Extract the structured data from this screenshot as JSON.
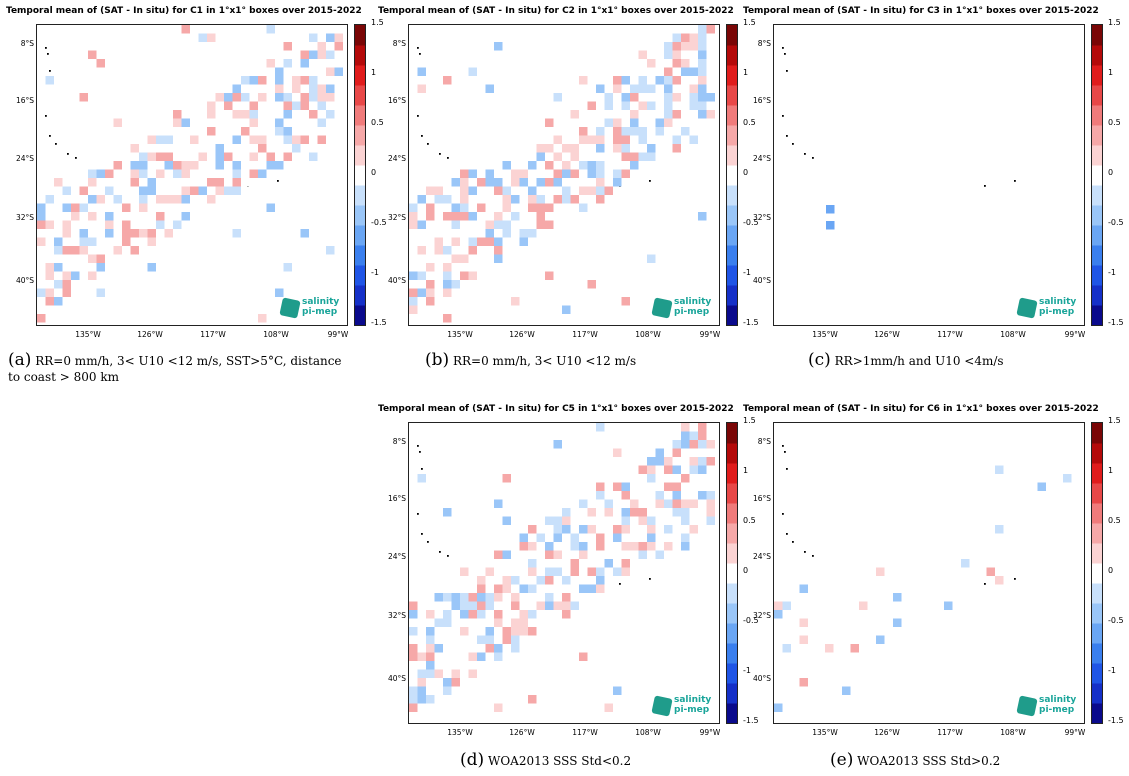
{
  "colors": {
    "land": "#000000",
    "frame": "#222222",
    "logo": "#1aa59a"
  },
  "colorbar": {
    "range": [
      -1.5,
      1.5
    ],
    "tick_labels": [
      "1.5",
      "1",
      "0.5",
      "0",
      "-0.5",
      "-1",
      "-1.5"
    ],
    "stops": [
      "#0a0a8c",
      "#1530c8",
      "#1f55e6",
      "#3a7fee",
      "#6aa6f4",
      "#9ac6f8",
      "#c8e0fb",
      "#ffffff",
      "#fbd3d3",
      "#f6a8a8",
      "#f07b7b",
      "#e84848",
      "#e01c1c",
      "#b40a0a",
      "#7a0606"
    ]
  },
  "axes": {
    "y_ticks": [
      "8°S",
      "16°S",
      "24°S",
      "32°S",
      "40°S"
    ],
    "x_ticks": [
      "135°W",
      "126°W",
      "117°W",
      "108°W",
      "99°W"
    ]
  },
  "logo": {
    "line1": "salinity",
    "line2": "pi-mep"
  },
  "panels": [
    {
      "id": "a",
      "title": "Temporal mean of (SAT - In situ) for C1 in 1°x1° boxes over 2015-2022",
      "caption_label": "(a)",
      "caption_text": "RR=0  mm/h,  3<  U10  <12  m/s, SST>5°C, distance to coast > 800 km"
    },
    {
      "id": "b",
      "title": "Temporal mean of (SAT - In situ) for C2 in 1°x1° boxes over 2015-2022",
      "caption_label": "(b)",
      "caption_text": "RR=0 mm/h, 3< U10 <12 m/s"
    },
    {
      "id": "c",
      "title": "Temporal mean of (SAT - In situ) for C3 in 1°x1° boxes over 2015-2022",
      "caption_label": "(c)",
      "caption_text": "RR>1mm/h and U10 <4m/s"
    },
    {
      "id": "d",
      "title": "Temporal mean of (SAT - In situ) for C5 in 1°x1° boxes over 2015-2022",
      "caption_label": "(d)",
      "caption_text": "WOA2013 SSS Std<0.2"
    },
    {
      "id": "e",
      "title": "Temporal mean of (SAT - In situ) for C6 in 1°x1° boxes over 2015-2022",
      "caption_label": "(e)",
      "caption_text": "WOA2013 SSS Std>0.2"
    }
  ],
  "chart_data": [
    {
      "type": "heatmap",
      "title": "Temporal mean of (SAT - In situ) for C1 in 1°x1° boxes over 2015-2022",
      "x_ticks": [
        "135°W",
        "126°W",
        "117°W",
        "108°W",
        "99°W"
      ],
      "y_ticks": [
        "8°S",
        "16°S",
        "24°S",
        "32°S",
        "40°S"
      ],
      "colorbar_range": [
        -1.5,
        1.5
      ],
      "pattern": "dense diagonal band"
    },
    {
      "type": "heatmap",
      "title": "Temporal mean of (SAT - In situ) for C2 in 1°x1° boxes over 2015-2022",
      "x_ticks": [
        "135°W",
        "126°W",
        "117°W",
        "108°W",
        "99°W"
      ],
      "y_ticks": [
        "8°S",
        "16°S",
        "24°S",
        "32°S",
        "40°S"
      ],
      "colorbar_range": [
        -1.5,
        1.5
      ],
      "pattern": "dense diagonal band"
    },
    {
      "type": "heatmap",
      "title": "Temporal mean of (SAT - In situ) for C3 in 1°x1° boxes over 2015-2022",
      "x_ticks": [
        "135°W",
        "126°W",
        "117°W",
        "108°W",
        "99°W"
      ],
      "y_ticks": [
        "8°S",
        "16°S",
        "24°S",
        "32°S",
        "40°S"
      ],
      "colorbar_range": [
        -1.5,
        1.5
      ],
      "pattern": "very sparse"
    },
    {
      "type": "heatmap",
      "title": "Temporal mean of (SAT - In situ) for C5 in 1°x1° boxes over 2015-2022",
      "x_ticks": [
        "135°W",
        "126°W",
        "117°W",
        "108°W",
        "99°W"
      ],
      "y_ticks": [
        "8°S",
        "16°S",
        "24°S",
        "32°S",
        "40°S"
      ],
      "colorbar_range": [
        -1.5,
        1.5
      ],
      "pattern": "dense diagonal band"
    },
    {
      "type": "heatmap",
      "title": "Temporal mean of (SAT - In situ) for C6 in 1°x1° boxes over 2015-2022",
      "x_ticks": [
        "135°W",
        "126°W",
        "117°W",
        "108°W",
        "99°W"
      ],
      "y_ticks": [
        "8°S",
        "16°S",
        "24°S",
        "32°S",
        "40°S"
      ],
      "colorbar_range": [
        -1.5,
        1.5
      ],
      "pattern": "sparse"
    }
  ]
}
